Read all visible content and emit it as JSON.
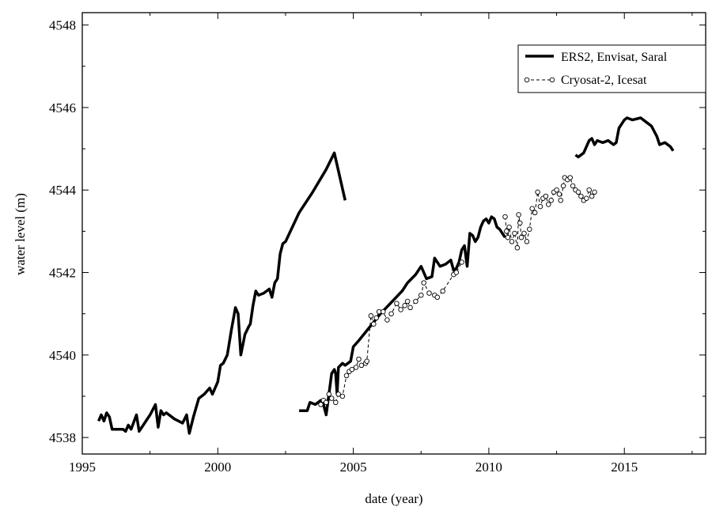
{
  "chart_data": {
    "type": "line",
    "xlabel": "date (year)",
    "ylabel": "water level (m)",
    "xlim": [
      1995,
      2018
    ],
    "ylim": [
      4537.6,
      4548.3
    ],
    "x_ticks": [
      "1995",
      "2000",
      "2005",
      "2010",
      "2015"
    ],
    "x_tick_values": [
      1995,
      2000,
      2005,
      2010,
      2015
    ],
    "y_ticks": [
      "4538",
      "4540",
      "4542",
      "4544",
      "4546",
      "4548"
    ],
    "y_tick_values": [
      4538,
      4540,
      4542,
      4544,
      4546,
      4548
    ],
    "legend_position": "top-right",
    "grid": false,
    "series": [
      {
        "name": "ERS2, Envisat, Saral",
        "style": "solid-thick",
        "color": "#000000",
        "segments": [
          [
            [
              1995.6,
              4538.4
            ],
            [
              1995.7,
              4538.55
            ],
            [
              1995.8,
              4538.4
            ],
            [
              1995.9,
              4538.6
            ],
            [
              1996.0,
              4538.5
            ],
            [
              1996.1,
              4538.2
            ],
            [
              1996.3,
              4538.2
            ],
            [
              1996.5,
              4538.2
            ],
            [
              1996.6,
              4538.15
            ],
            [
              1996.7,
              4538.3
            ],
            [
              1996.8,
              4538.2
            ],
            [
              1997.0,
              4538.55
            ],
            [
              1997.1,
              4538.15
            ],
            [
              1997.3,
              4538.35
            ],
            [
              1997.5,
              4538.55
            ],
            [
              1997.7,
              4538.8
            ],
            [
              1997.8,
              4538.25
            ],
            [
              1997.9,
              4538.65
            ],
            [
              1998.0,
              4538.55
            ],
            [
              1998.1,
              4538.6
            ],
            [
              1998.4,
              4538.45
            ],
            [
              1998.7,
              4538.35
            ],
            [
              1998.85,
              4538.55
            ],
            [
              1998.95,
              4538.1
            ],
            [
              1999.1,
              4538.5
            ],
            [
              1999.3,
              4538.95
            ],
            [
              1999.5,
              4539.05
            ],
            [
              1999.7,
              4539.2
            ],
            [
              1999.8,
              4539.05
            ],
            [
              2000.0,
              4539.35
            ],
            [
              2000.1,
              4539.75
            ],
            [
              2000.2,
              4539.8
            ],
            [
              2000.35,
              4540.0
            ],
            [
              2000.5,
              4540.6
            ],
            [
              2000.65,
              4541.15
            ],
            [
              2000.75,
              4541.0
            ],
            [
              2000.85,
              4540.0
            ],
            [
              2001.0,
              4540.5
            ],
            [
              2001.15,
              4540.7
            ],
            [
              2001.2,
              4540.75
            ],
            [
              2001.3,
              4541.2
            ],
            [
              2001.4,
              4541.55
            ],
            [
              2001.5,
              4541.45
            ],
            [
              2001.7,
              4541.5
            ],
            [
              2001.9,
              4541.6
            ],
            [
              2002.0,
              4541.4
            ],
            [
              2002.1,
              4541.75
            ],
            [
              2002.2,
              4541.85
            ],
            [
              2002.3,
              4542.45
            ],
            [
              2002.4,
              4542.7
            ],
            [
              2002.5,
              4542.75
            ],
            [
              2003.0,
              4543.45
            ],
            [
              2003.5,
              4543.95
            ],
            [
              2004.0,
              4544.5
            ],
            [
              2004.3,
              4544.9
            ],
            [
              2004.7,
              4543.75
            ]
          ],
          [
            [
              2003.0,
              4538.65
            ],
            [
              2003.3,
              4538.65
            ],
            [
              2003.4,
              4538.85
            ],
            [
              2003.6,
              4538.8
            ],
            [
              2003.8,
              4538.9
            ],
            [
              2003.9,
              4538.8
            ],
            [
              2004.0,
              4538.55
            ],
            [
              2004.1,
              4539.05
            ],
            [
              2004.2,
              4539.55
            ],
            [
              2004.3,
              4539.65
            ],
            [
              2004.35,
              4539.55
            ],
            [
              2004.4,
              4539.05
            ],
            [
              2004.45,
              4539.7
            ],
            [
              2004.6,
              4539.8
            ],
            [
              2004.7,
              4539.75
            ],
            [
              2004.9,
              4539.85
            ],
            [
              2005.0,
              4540.2
            ],
            [
              2005.2,
              4540.35
            ],
            [
              2006.0,
              4541.0
            ],
            [
              2006.8,
              4541.55
            ],
            [
              2007.0,
              4541.75
            ],
            [
              2007.3,
              4541.95
            ],
            [
              2007.5,
              4542.15
            ],
            [
              2007.7,
              4541.85
            ],
            [
              2007.9,
              4541.9
            ],
            [
              2008.0,
              4542.35
            ],
            [
              2008.2,
              4542.15
            ],
            [
              2008.4,
              4542.2
            ],
            [
              2008.6,
              4542.3
            ],
            [
              2008.7,
              4542.05
            ],
            [
              2008.8,
              4542.1
            ],
            [
              2008.9,
              4542.25
            ],
            [
              2009.0,
              4542.55
            ],
            [
              2009.1,
              4542.65
            ],
            [
              2009.2,
              4542.15
            ],
            [
              2009.3,
              4542.95
            ],
            [
              2009.4,
              4542.9
            ],
            [
              2009.5,
              4542.75
            ],
            [
              2009.6,
              4542.85
            ],
            [
              2009.7,
              4543.1
            ],
            [
              2009.8,
              4543.25
            ],
            [
              2009.9,
              4543.3
            ],
            [
              2010.0,
              4543.2
            ],
            [
              2010.1,
              4543.35
            ],
            [
              2010.2,
              4543.3
            ],
            [
              2010.3,
              4543.1
            ],
            [
              2010.4,
              4543.05
            ],
            [
              2010.5,
              4542.95
            ],
            [
              2010.6,
              4542.85
            ]
          ],
          [
            [
              2013.2,
              4544.85
            ],
            [
              2013.3,
              4544.8
            ],
            [
              2013.5,
              4544.9
            ],
            [
              2013.7,
              4545.2
            ],
            [
              2013.8,
              4545.25
            ],
            [
              2013.9,
              4545.1
            ],
            [
              2014.0,
              4545.2
            ],
            [
              2014.2,
              4545.15
            ],
            [
              2014.4,
              4545.2
            ],
            [
              2014.6,
              4545.1
            ],
            [
              2014.7,
              4545.15
            ],
            [
              2014.8,
              4545.5
            ],
            [
              2014.9,
              4545.6
            ],
            [
              2015.0,
              4545.7
            ],
            [
              2015.1,
              4545.75
            ],
            [
              2015.3,
              4545.7
            ],
            [
              2015.6,
              4545.75
            ],
            [
              2015.8,
              4545.65
            ],
            [
              2016.0,
              4545.55
            ],
            [
              2016.2,
              4545.3
            ],
            [
              2016.3,
              4545.1
            ],
            [
              2016.5,
              4545.15
            ],
            [
              2016.7,
              4545.05
            ],
            [
              2016.8,
              4544.95
            ]
          ]
        ]
      },
      {
        "name": "Cryosat-2, Icesat",
        "style": "dashed-circles",
        "color": "#000000",
        "segments": [
          [
            [
              2003.8,
              4538.8
            ],
            [
              2003.9,
              4538.9
            ],
            [
              2004.0,
              4538.85
            ],
            [
              2004.1,
              4539.05
            ],
            [
              2004.2,
              4538.95
            ],
            [
              2004.35,
              4538.85
            ],
            [
              2004.45,
              4539.05
            ],
            [
              2004.6,
              4539.0
            ],
            [
              2004.75,
              4539.5
            ],
            [
              2004.85,
              4539.6
            ],
            [
              2004.95,
              4539.65
            ],
            [
              2005.1,
              4539.7
            ],
            [
              2005.2,
              4539.9
            ],
            [
              2005.3,
              4539.75
            ],
            [
              2005.45,
              4539.8
            ],
            [
              2005.5,
              4539.85
            ],
            [
              2005.65,
              4540.95
            ],
            [
              2005.75,
              4540.75
            ],
            [
              2005.85,
              4540.9
            ],
            [
              2005.95,
              4541.05
            ],
            [
              2006.1,
              4541.05
            ],
            [
              2006.25,
              4540.85
            ],
            [
              2006.4,
              4541.0
            ],
            [
              2006.6,
              4541.25
            ],
            [
              2006.75,
              4541.1
            ],
            [
              2006.9,
              4541.2
            ],
            [
              2007.0,
              4541.3
            ],
            [
              2007.1,
              4541.15
            ],
            [
              2007.3,
              4541.3
            ],
            [
              2007.5,
              4541.45
            ],
            [
              2007.6,
              4541.75
            ],
            [
              2007.8,
              4541.5
            ],
            [
              2008.0,
              4541.45
            ],
            [
              2008.1,
              4541.4
            ],
            [
              2008.3,
              4541.55
            ],
            [
              2008.7,
              4541.95
            ],
            [
              2008.8,
              4542.0
            ],
            [
              2009.0,
              4542.25
            ]
          ],
          [
            [
              2010.6,
              4543.35
            ],
            [
              2010.65,
              4543.0
            ],
            [
              2010.7,
              4542.85
            ],
            [
              2010.75,
              4543.1
            ],
            [
              2010.85,
              4542.75
            ],
            [
              2010.95,
              4542.95
            ],
            [
              2011.05,
              4542.6
            ],
            [
              2011.1,
              4543.4
            ],
            [
              2011.15,
              4543.2
            ],
            [
              2011.2,
              4542.85
            ],
            [
              2011.3,
              4542.95
            ],
            [
              2011.4,
              4542.75
            ],
            [
              2011.5,
              4543.05
            ],
            [
              2011.6,
              4543.55
            ],
            [
              2011.7,
              4543.45
            ],
            [
              2011.8,
              4543.95
            ],
            [
              2011.9,
              4543.6
            ],
            [
              2012.0,
              4543.8
            ],
            [
              2012.1,
              4543.85
            ],
            [
              2012.2,
              4543.65
            ],
            [
              2012.3,
              4543.75
            ],
            [
              2012.4,
              4543.95
            ],
            [
              2012.5,
              4544.0
            ],
            [
              2012.6,
              4543.9
            ],
            [
              2012.65,
              4543.75
            ],
            [
              2012.75,
              4544.1
            ],
            [
              2012.8,
              4544.3
            ],
            [
              2012.9,
              4544.25
            ],
            [
              2013.0,
              4544.3
            ],
            [
              2013.1,
              4544.1
            ],
            [
              2013.2,
              4544.0
            ],
            [
              2013.3,
              4543.95
            ],
            [
              2013.4,
              4543.85
            ],
            [
              2013.5,
              4543.75
            ],
            [
              2013.6,
              4543.8
            ],
            [
              2013.7,
              4544.0
            ],
            [
              2013.8,
              4543.85
            ],
            [
              2013.9,
              4543.95
            ]
          ]
        ]
      }
    ]
  }
}
